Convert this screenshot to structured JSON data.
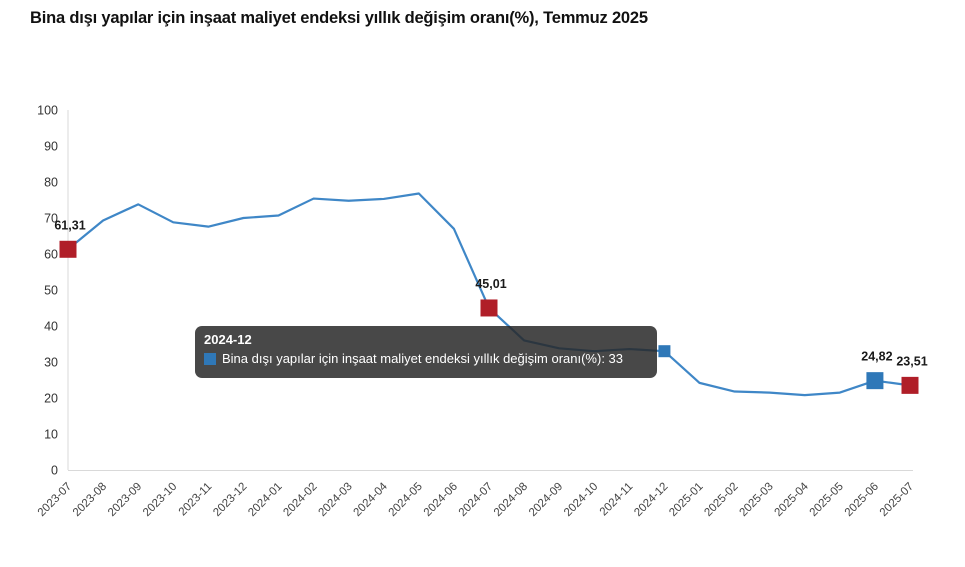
{
  "page": {
    "background": "#ffffff"
  },
  "title": "Bina dışı yapılar için inşaat maliyet endeksi yıllık değişim oranı(%), Temmuz 2025",
  "colors": {
    "line": "#3f87c7",
    "marker_red": "#b01e28",
    "marker_blue": "#2f78b8",
    "axis": "#d9d9d9",
    "y_tick_text": "#333333",
    "x_tick_text": "#444444",
    "data_label_text": "#1a1a1a",
    "tooltip_bg": "rgba(40,40,40,0.85)",
    "tooltip_text": "#ffffff"
  },
  "tooltip": {
    "header": "2024-12",
    "series_marker_color": "#2f78b8",
    "text": "Bina dışı yapılar için inşaat maliyet endeksi yıllık değişim oranı(%): 33"
  },
  "chart_data": {
    "type": "line",
    "title": "Bina dışı yapılar için inşaat maliyet endeksi yıllık değişim oranı(%), Temmuz 2025",
    "xlabel": "",
    "ylabel": "",
    "ylim": [
      0,
      100
    ],
    "ytick_step": 10,
    "grid": false,
    "legend": "none",
    "categories": [
      "2023-07",
      "2023-08",
      "2023-09",
      "2023-10",
      "2023-11",
      "2023-12",
      "2024-01",
      "2024-02",
      "2024-03",
      "2024-04",
      "2024-05",
      "2024-06",
      "2024-07",
      "2024-08",
      "2024-09",
      "2024-10",
      "2024-11",
      "2024-12",
      "2025-01",
      "2025-02",
      "2025-03",
      "2025-04",
      "2025-05",
      "2025-06",
      "2025-07"
    ],
    "series": [
      {
        "name": "Bina dışı yapılar için inşaat maliyet endeksi yıllık değişim oranı(%)",
        "values": [
          61.31,
          69.3,
          73.8,
          68.8,
          67.6,
          70.0,
          70.7,
          75.4,
          74.8,
          75.3,
          76.8,
          67.0,
          45.01,
          36.0,
          33.8,
          33.0,
          33.6,
          33.0,
          24.2,
          21.8,
          21.5,
          20.8,
          21.5,
          24.82,
          23.51
        ]
      }
    ],
    "point_labels": [
      {
        "category": "2023-07",
        "label": "61,31",
        "value": 61.31,
        "marker_color": "#b01e28"
      },
      {
        "category": "2024-07",
        "label": "45,01",
        "value": 45.01,
        "marker_color": "#b01e28"
      },
      {
        "category": "2025-06",
        "label": "24,82",
        "value": 24.82,
        "marker_color": "#2f78b8"
      },
      {
        "category": "2025-07",
        "label": "23,51",
        "value": 23.51,
        "marker_color": "#b01e28"
      }
    ],
    "hovered_point": {
      "category": "2024-12",
      "value": 33,
      "marker_color": "#2f78b8"
    }
  }
}
